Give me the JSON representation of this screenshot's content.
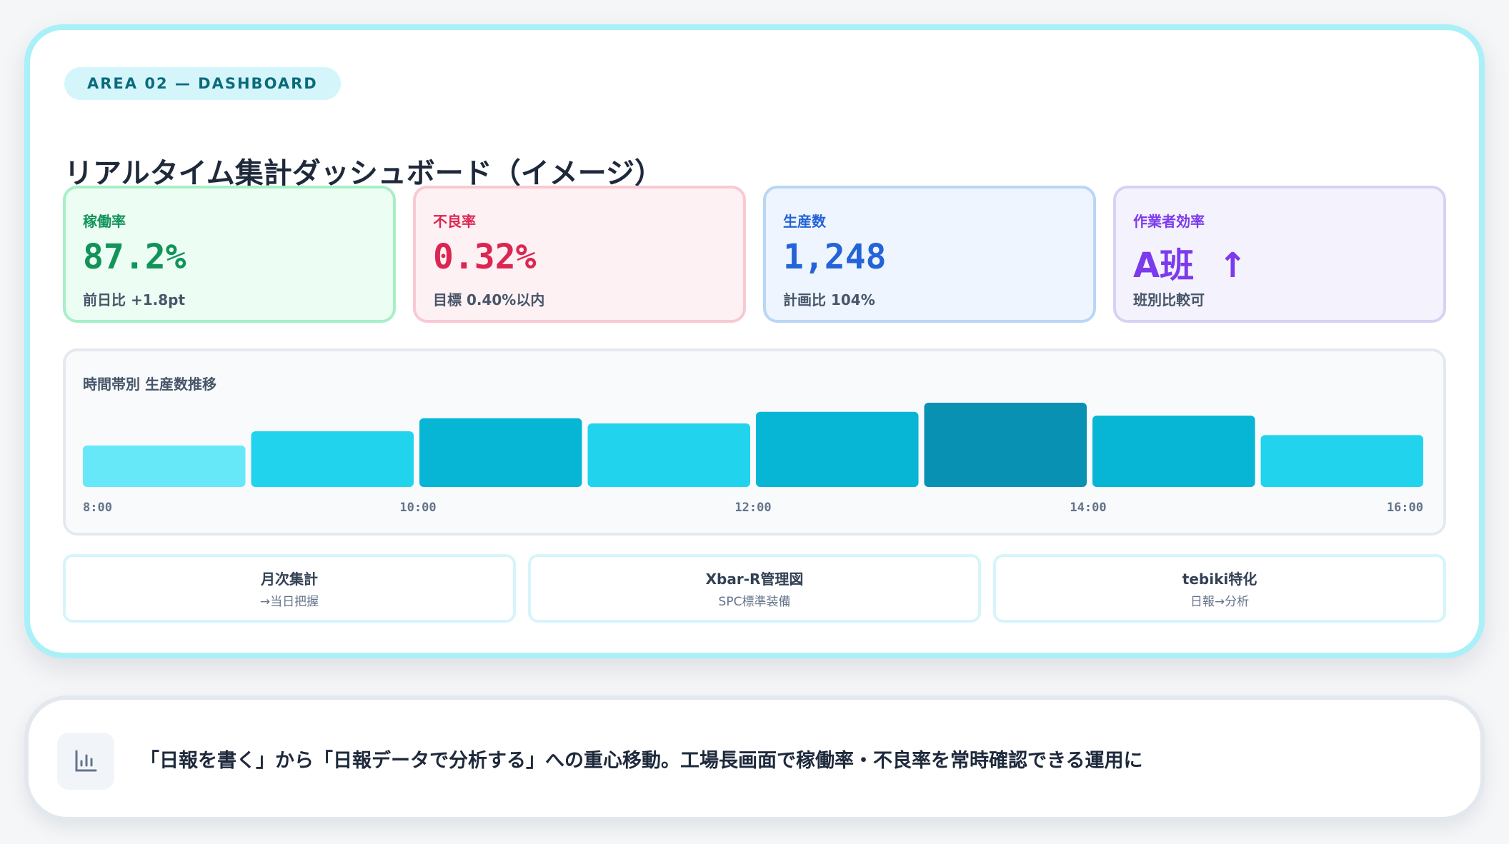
{
  "header": {
    "area_label": "AREA 02 — DASHBOARD",
    "title": "リアルタイム集計ダッシュボード（イメージ）"
  },
  "kpis": [
    {
      "label": "稼働率",
      "value": "87.2%",
      "sub": "前日比 +1.8pt",
      "color": "#12935a"
    },
    {
      "label": "不良率",
      "value": "0.32%",
      "sub": "目標 0.40%以内",
      "color": "#dc2652"
    },
    {
      "label": "生産数",
      "value": "1,248",
      "sub": "計画比 104%",
      "color": "#2464d8"
    },
    {
      "label": "作業者効率",
      "value": "A班",
      "trend_icon": "↑",
      "sub": "班別比較可",
      "color": "#7c3aed"
    }
  ],
  "chart_data": {
    "type": "bar",
    "title": "時間帯別 生産数推移",
    "values": [
      32,
      43,
      53,
      49,
      58,
      65,
      55,
      40
    ],
    "tick_labels": [
      "8:00",
      "10:00",
      "12:00",
      "14:00",
      "16:00"
    ],
    "colors": [
      "#67e8f9",
      "#22d3ee",
      "#06b6d4",
      "#22d3ee",
      "#06b6d4",
      "#0891b2",
      "#06b6d4",
      "#22d3ee"
    ],
    "ylim": [
      0,
      65
    ],
    "grid": false
  },
  "features": [
    {
      "title": "月次集計",
      "sub": "→当日把握"
    },
    {
      "title": "Xbar-R管理図",
      "sub": "SPC標準装備"
    },
    {
      "title": "tebiki特化",
      "sub": "日報→分析"
    }
  ],
  "note": {
    "icon": "bar-chart-icon",
    "text": "「日報を書く」から「日報データで分析する」への重心移動。工場長画面で稼働率・不良率を常時確認できる運用に"
  }
}
